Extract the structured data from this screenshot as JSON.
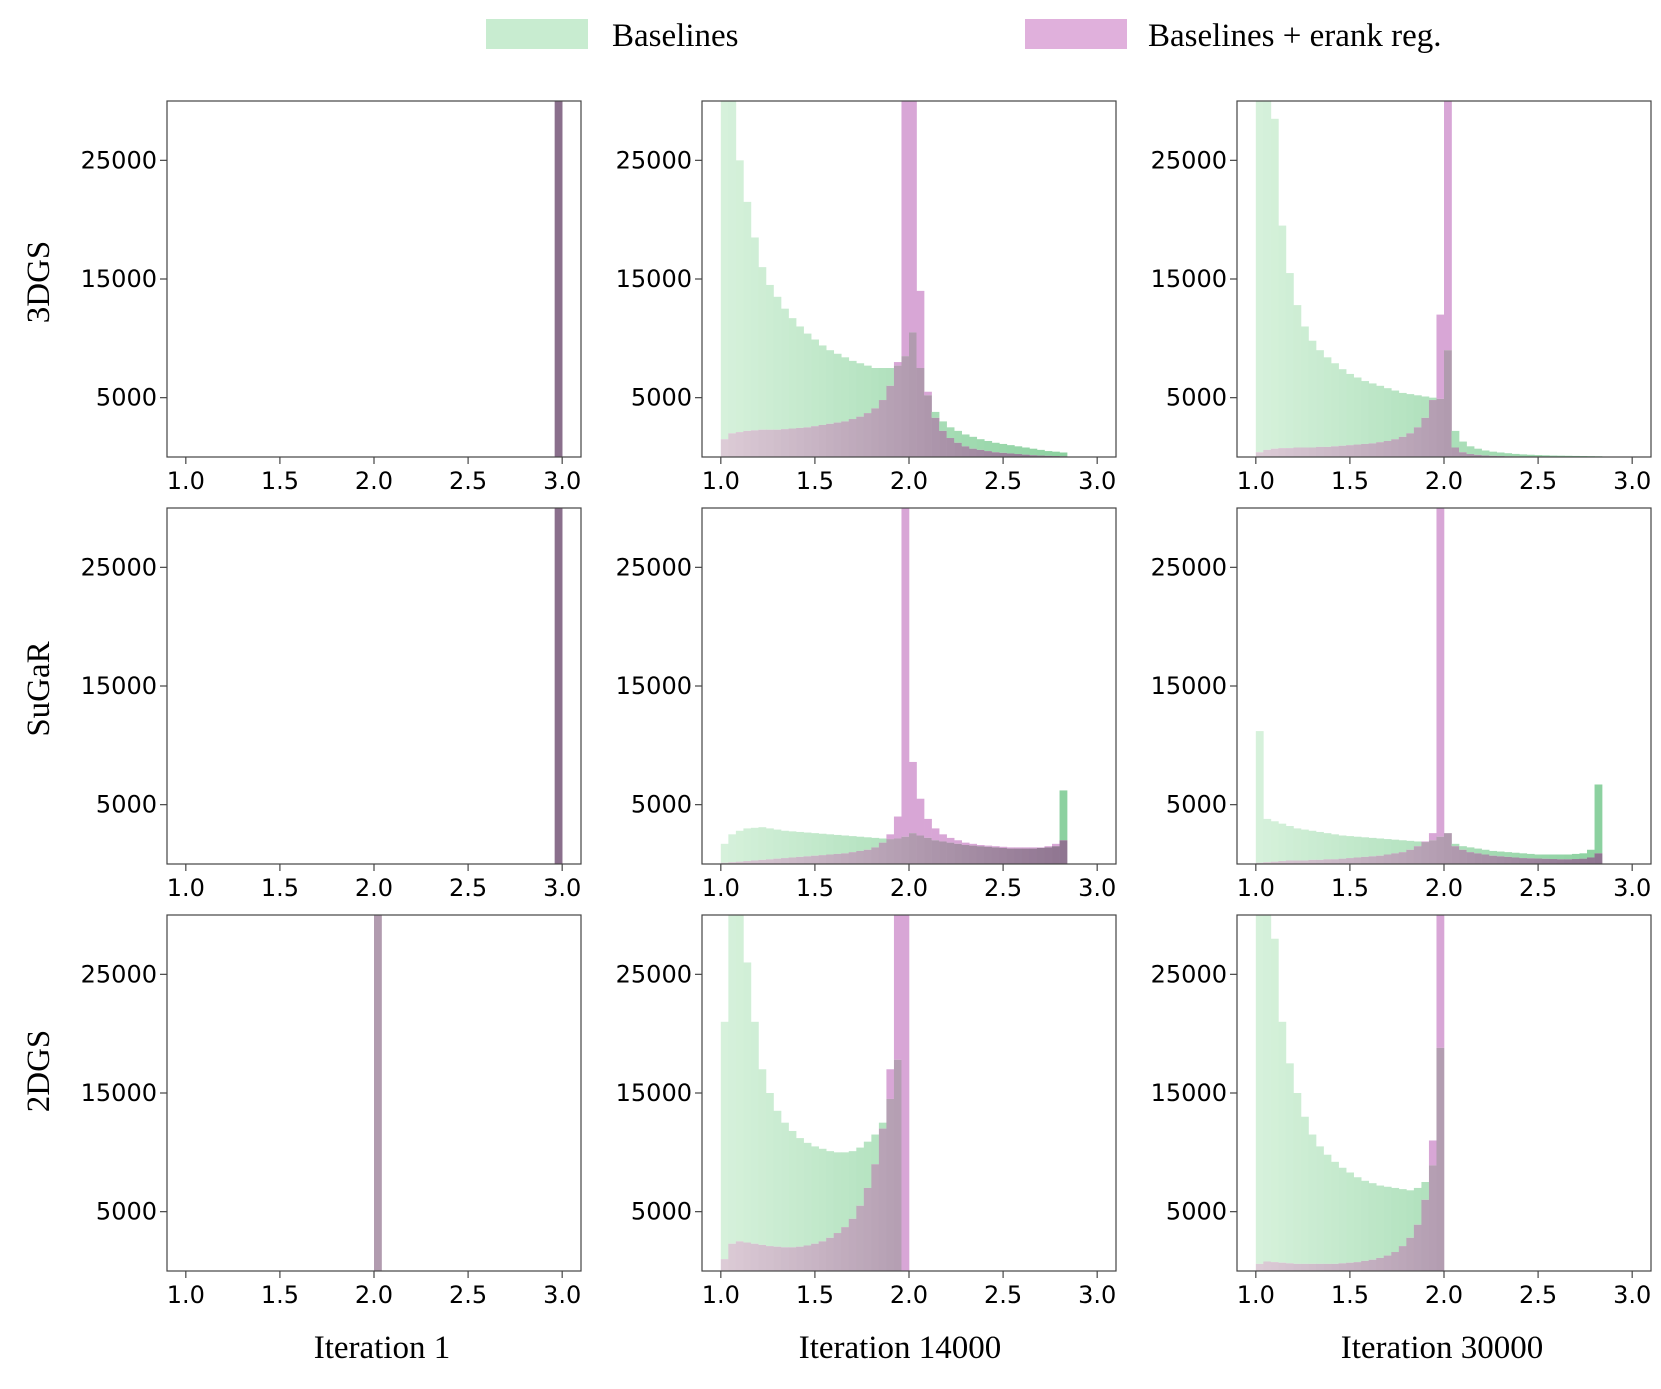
{
  "legend": {
    "entries": [
      {
        "label": "Baselines",
        "color": "#c8ecd0"
      },
      {
        "label": "Baselines + erank reg.",
        "color": "#e0b0dc"
      }
    ]
  },
  "row_labels": [
    "3DGS",
    "SuGaR",
    "2DGS"
  ],
  "column_labels": [
    "Iteration 1",
    "Iteration 14000",
    "Iteration 30000"
  ],
  "colors": {
    "baseline_light": "#cdeed3",
    "baseline_dark": "#88cf9c",
    "erank": "#d8a6d6",
    "overlap_light": "#d8c2d0",
    "overlap_dark": "#8e7390",
    "axis": "#444444"
  },
  "chart_data": [
    {
      "type": "bar",
      "title": "",
      "row": "3DGS",
      "col": "Iteration 1",
      "xlim": [
        0.9,
        3.1
      ],
      "ylim": [
        0,
        30000
      ],
      "x_ticks": [
        "1.0",
        "1.5",
        "2.0",
        "2.5",
        "3.0"
      ],
      "y_ticks": [
        "5000",
        "15000",
        "25000"
      ],
      "bin_start": 1.0,
      "bin_width": 0.04,
      "baseline": {
        "49": 30000
      },
      "erank": {
        "49": 30000
      }
    },
    {
      "type": "bar",
      "title": "",
      "row": "3DGS",
      "col": "Iteration 14000",
      "xlim": [
        0.9,
        3.1
      ],
      "ylim": [
        0,
        30000
      ],
      "x_ticks": [
        "1.0",
        "1.5",
        "2.0",
        "2.5",
        "3.0"
      ],
      "y_ticks": [
        "5000",
        "15000",
        "25000"
      ],
      "bin_start": 1.0,
      "bin_width": 0.04,
      "baseline": [
        30000,
        30000,
        25000,
        21500,
        18500,
        16000,
        14500,
        13500,
        12500,
        11700,
        11000,
        10400,
        9900,
        9400,
        9000,
        8700,
        8400,
        8100,
        7900,
        7700,
        7500,
        7500,
        7500,
        7700,
        8500,
        10500,
        7500,
        5200,
        3800,
        3000,
        2500,
        2200,
        1900,
        1700,
        1500,
        1350,
        1200,
        1100,
        1000,
        900,
        800,
        700,
        600,
        500,
        450,
        380
      ],
      "erank": [
        1500,
        2000,
        2100,
        2200,
        2250,
        2300,
        2300,
        2300,
        2350,
        2400,
        2450,
        2500,
        2600,
        2700,
        2800,
        2900,
        3000,
        3200,
        3400,
        3700,
        4100,
        4800,
        6000,
        8000,
        30000,
        30000,
        14000,
        5500,
        3300,
        2200,
        1600,
        1200,
        900,
        700,
        600,
        500,
        400,
        350,
        300,
        250,
        200,
        150,
        120,
        100,
        80,
        60
      ]
    },
    {
      "type": "bar",
      "title": "",
      "row": "3DGS",
      "col": "Iteration 30000",
      "xlim": [
        0.9,
        3.1
      ],
      "ylim": [
        0,
        30000
      ],
      "x_ticks": [
        "1.0",
        "1.5",
        "2.0",
        "2.5",
        "3.0"
      ],
      "y_ticks": [
        "5000",
        "15000",
        "25000"
      ],
      "bin_start": 1.0,
      "bin_width": 0.04,
      "baseline": [
        30000,
        30000,
        28500,
        19500,
        15500,
        12800,
        11000,
        9800,
        9000,
        8400,
        7900,
        7400,
        7000,
        6700,
        6400,
        6200,
        6000,
        5800,
        5600,
        5400,
        5300,
        5200,
        5100,
        5000,
        4900,
        9000,
        2200,
        1300,
        900,
        700,
        550,
        450,
        380,
        320,
        260,
        220,
        190,
        160,
        140,
        120,
        110,
        100,
        90,
        80,
        70,
        60
      ],
      "erank": [
        400,
        600,
        700,
        750,
        750,
        800,
        800,
        800,
        850,
        850,
        900,
        950,
        1000,
        1050,
        1100,
        1150,
        1250,
        1350,
        1500,
        1700,
        2000,
        2500,
        3300,
        4800,
        12000,
        30000,
        800,
        400,
        250,
        180,
        130,
        100,
        80,
        60,
        50,
        40,
        30,
        25,
        20,
        15,
        10,
        10,
        5,
        5,
        5,
        5
      ]
    },
    {
      "type": "bar",
      "title": "",
      "row": "SuGaR",
      "col": "Iteration 1",
      "xlim": [
        0.9,
        3.1
      ],
      "ylim": [
        0,
        30000
      ],
      "x_ticks": [
        "1.0",
        "1.5",
        "2.0",
        "2.5",
        "3.0"
      ],
      "y_ticks": [
        "5000",
        "15000",
        "25000"
      ],
      "bin_start": 1.0,
      "bin_width": 0.04,
      "baseline": {
        "49": 30000
      },
      "erank": {
        "49": 30000
      }
    },
    {
      "type": "bar",
      "title": "",
      "row": "SuGaR",
      "col": "Iteration 14000",
      "xlim": [
        0.9,
        3.1
      ],
      "ylim": [
        0,
        30000
      ],
      "x_ticks": [
        "1.0",
        "1.5",
        "2.0",
        "2.5",
        "3.0"
      ],
      "y_ticks": [
        "5000",
        "15000",
        "25000"
      ],
      "bin_start": 1.0,
      "bin_width": 0.04,
      "baseline": [
        1700,
        2500,
        2800,
        3000,
        3050,
        3100,
        3000,
        2900,
        2800,
        2750,
        2700,
        2650,
        2600,
        2550,
        2500,
        2450,
        2400,
        2350,
        2300,
        2250,
        2200,
        2150,
        2100,
        2150,
        2300,
        2600,
        2400,
        2200,
        2000,
        1900,
        1800,
        1700,
        1600,
        1550,
        1500,
        1450,
        1400,
        1350,
        1300,
        1300,
        1300,
        1300,
        1350,
        1400,
        1500,
        6200
      ],
      "erank": [
        100,
        150,
        200,
        250,
        300,
        350,
        400,
        450,
        500,
        550,
        600,
        650,
        700,
        750,
        800,
        850,
        900,
        1000,
        1100,
        1200,
        1400,
        1800,
        2500,
        4000,
        30000,
        8600,
        5500,
        3800,
        3000,
        2500,
        2200,
        2000,
        1800,
        1700,
        1600,
        1550,
        1500,
        1450,
        1400,
        1400,
        1400,
        1400,
        1400,
        1500,
        1700,
        2000
      ]
    },
    {
      "type": "bar",
      "title": "",
      "row": "SuGaR",
      "col": "Iteration 30000",
      "xlim": [
        0.9,
        3.1
      ],
      "ylim": [
        0,
        30000
      ],
      "x_ticks": [
        "1.0",
        "1.5",
        "2.0",
        "2.5",
        "3.0"
      ],
      "y_ticks": [
        "5000",
        "15000",
        "25000"
      ],
      "bin_start": 1.0,
      "bin_width": 0.04,
      "baseline": [
        11200,
        3800,
        3600,
        3400,
        3200,
        3000,
        2900,
        2800,
        2700,
        2600,
        2500,
        2400,
        2350,
        2300,
        2250,
        2200,
        2150,
        2100,
        2050,
        2000,
        1950,
        1900,
        1850,
        2000,
        2300,
        2600,
        1700,
        1500,
        1400,
        1300,
        1200,
        1100,
        1050,
        1000,
        950,
        900,
        850,
        800,
        800,
        800,
        800,
        800,
        850,
        900,
        1200,
        6700
      ],
      "erank": [
        100,
        150,
        200,
        250,
        300,
        300,
        300,
        350,
        350,
        400,
        400,
        450,
        500,
        550,
        600,
        650,
        700,
        800,
        900,
        1000,
        1200,
        1500,
        1900,
        2600,
        30000,
        2600,
        1500,
        1200,
        1000,
        900,
        800,
        700,
        650,
        600,
        550,
        500,
        480,
        460,
        440,
        420,
        400,
        400,
        420,
        450,
        550,
        900
      ]
    },
    {
      "type": "bar",
      "title": "",
      "row": "2DGS",
      "col": "Iteration 1",
      "xlim": [
        0.9,
        3.1
      ],
      "ylim": [
        0,
        30000
      ],
      "x_ticks": [
        "1.0",
        "1.5",
        "2.0",
        "2.5",
        "3.0"
      ],
      "y_ticks": [
        "5000",
        "15000",
        "25000"
      ],
      "bin_start": 1.0,
      "bin_width": 0.04,
      "baseline": {
        "25": 30000
      },
      "erank": {
        "25": 30000
      }
    },
    {
      "type": "bar",
      "title": "",
      "row": "2DGS",
      "col": "Iteration 14000",
      "xlim": [
        0.9,
        3.1
      ],
      "ylim": [
        0,
        30000
      ],
      "x_ticks": [
        "1.0",
        "1.5",
        "2.0",
        "2.5",
        "3.0"
      ],
      "y_ticks": [
        "5000",
        "15000",
        "25000"
      ],
      "bin_start": 1.0,
      "bin_width": 0.04,
      "baseline": [
        21000,
        30000,
        30000,
        26000,
        21000,
        17000,
        15000,
        13500,
        12500,
        11800,
        11200,
        10800,
        10500,
        10300,
        10100,
        10000,
        10000,
        10100,
        10400,
        10900,
        11500,
        12500,
        14500,
        17800
      ],
      "erank": [
        1000,
        2300,
        2500,
        2400,
        2300,
        2200,
        2100,
        2050,
        2000,
        2000,
        2050,
        2150,
        2300,
        2500,
        2800,
        3200,
        3700,
        4400,
        5500,
        7000,
        9000,
        12000,
        17000,
        30000,
        30000
      ]
    },
    {
      "type": "bar",
      "title": "",
      "row": "2DGS",
      "col": "Iteration 30000",
      "xlim": [
        0.9,
        3.1
      ],
      "ylim": [
        0,
        30000
      ],
      "x_ticks": [
        "1.0",
        "1.5",
        "2.0",
        "2.5",
        "3.0"
      ],
      "y_ticks": [
        "5000",
        "15000",
        "25000"
      ],
      "bin_start": 1.0,
      "bin_width": 0.04,
      "baseline": [
        30000,
        30000,
        28000,
        21000,
        17500,
        15000,
        13000,
        11500,
        10500,
        9800,
        9200,
        8700,
        8300,
        7900,
        7600,
        7400,
        7200,
        7100,
        7000,
        6900,
        6800,
        7000,
        7500,
        8900,
        18800
      ],
      "erank": [
        600,
        800,
        750,
        700,
        650,
        600,
        600,
        600,
        600,
        600,
        600,
        650,
        700,
        750,
        850,
        950,
        1100,
        1300,
        1600,
        2100,
        2800,
        3900,
        6000,
        11000,
        30000
      ]
    }
  ]
}
